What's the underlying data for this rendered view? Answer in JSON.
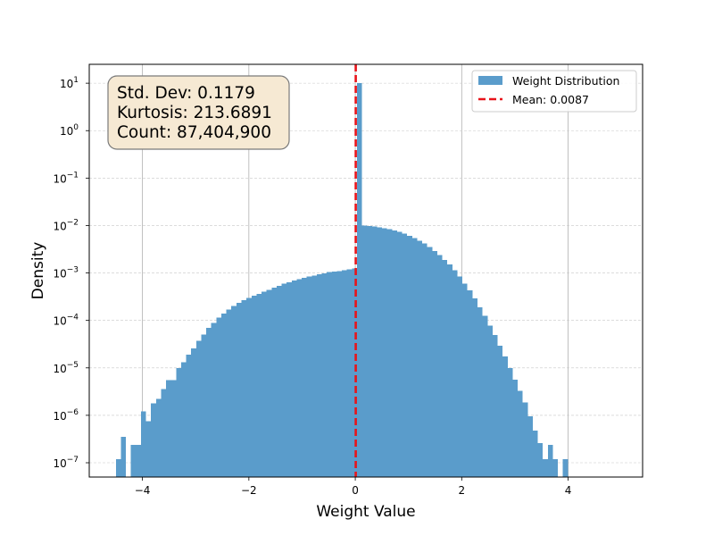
{
  "chart_data": {
    "type": "bar",
    "xlabel": "Weight Value",
    "ylabel": "Density",
    "xlim": [
      -5.0,
      5.4
    ],
    "ylim": [
      5e-08,
      25
    ],
    "yscale": "log",
    "x_ticks": [
      {
        "value": -4,
        "label": "−4"
      },
      {
        "value": -2,
        "label": "−2"
      },
      {
        "value": 0,
        "label": "0"
      },
      {
        "value": 2,
        "label": "2"
      },
      {
        "value": 4,
        "label": "4"
      }
    ],
    "y_ticks": [
      {
        "value": 1e-07,
        "base": "10",
        "exp": "−7"
      },
      {
        "value": 1e-06,
        "base": "10",
        "exp": "−6"
      },
      {
        "value": 1e-05,
        "base": "10",
        "exp": "−5"
      },
      {
        "value": 0.0001,
        "base": "10",
        "exp": "−4"
      },
      {
        "value": 0.001,
        "base": "10",
        "exp": "−3"
      },
      {
        "value": 0.01,
        "base": "10",
        "exp": "−2"
      },
      {
        "value": 0.1,
        "base": "10",
        "exp": "−1"
      },
      {
        "value": 1,
        "base": "10",
        "exp": "0"
      },
      {
        "value": 10,
        "base": "10",
        "exp": "1"
      }
    ],
    "grid": {
      "x": true,
      "y": true
    },
    "legend_position": "top-right",
    "bin_start": -4.5,
    "bin_width": 0.0944,
    "series": [
      {
        "name": "Weight Distribution",
        "color": "#5a9ccb",
        "values": [
          1.2e-07,
          3.5e-07,
          0,
          2.4e-07,
          2.4e-07,
          1.2e-06,
          7.5e-07,
          1.8e-06,
          2.2e-06,
          3.6e-06,
          5.5e-06,
          5.5e-06,
          1e-05,
          1.3e-05,
          1.9e-05,
          2.6e-05,
          3.7e-05,
          5e-05,
          6.9e-05,
          8.9e-05,
          0.000115,
          0.00014,
          0.00017,
          0.0002,
          0.000235,
          0.000265,
          0.000295,
          0.00033,
          0.000365,
          0.0004,
          0.00044,
          0.00049,
          0.00054,
          0.00059,
          0.00064,
          0.00069,
          0.00074,
          0.00079,
          0.00084,
          0.00089,
          0.00094,
          0.00099,
          0.00104,
          0.00107,
          0.0011,
          0.00115,
          0.0012,
          0.00125,
          10.0,
          0.01,
          0.0097,
          0.0095,
          0.0092,
          0.0088,
          0.0084,
          0.0079,
          0.0073,
          0.0067,
          0.0061,
          0.0055,
          0.0048,
          0.0042,
          0.0035,
          0.0029,
          0.0024,
          0.0019,
          0.0015,
          0.00115,
          0.00085,
          0.0006,
          0.00043,
          0.00029,
          0.00019,
          0.000125,
          7.8e-05,
          4.9e-05,
          2.9e-05,
          1.75e-05,
          1e-05,
          5.6e-06,
          3.3e-06,
          1.85e-06,
          9.5e-07,
          4.8e-07,
          2.6e-07,
          1.2e-07,
          2.4e-07,
          1.2e-07,
          0,
          1.2e-07
        ]
      }
    ],
    "mean_line": {
      "name": "Mean: 0.0087",
      "value": 0.0087,
      "color": "#e8141a"
    },
    "stats_box": {
      "lines": [
        "Std. Dev: 0.1179",
        "Kurtosis: 213.6891",
        "Count: 87,404,900"
      ],
      "background": "#f6e9d3",
      "border": "#7a7a7a"
    }
  }
}
